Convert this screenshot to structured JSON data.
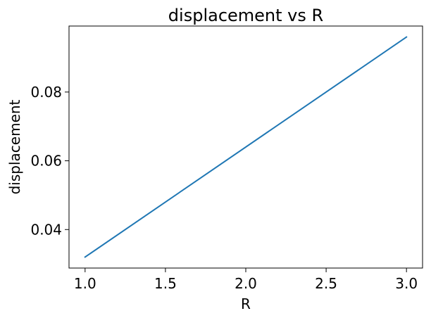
{
  "chart_data": {
    "type": "line",
    "title": "displacement vs R",
    "xlabel": "R",
    "ylabel": "displacement",
    "xlim": [
      0.9,
      3.1
    ],
    "ylim": [
      0.0288,
      0.0992
    ],
    "xticks": [
      1.0,
      1.5,
      2.0,
      2.5,
      3.0
    ],
    "xtick_labels": [
      "1.0",
      "1.5",
      "2.0",
      "2.5",
      "3.0"
    ],
    "yticks": [
      0.04,
      0.06,
      0.08
    ],
    "ytick_labels": [
      "0.04",
      "0.06",
      "0.08"
    ],
    "grid": false,
    "legend": "none",
    "series": [
      {
        "color": "#1f77b4",
        "x": [
          1.0,
          3.0
        ],
        "y": [
          0.032,
          0.096
        ]
      }
    ]
  }
}
